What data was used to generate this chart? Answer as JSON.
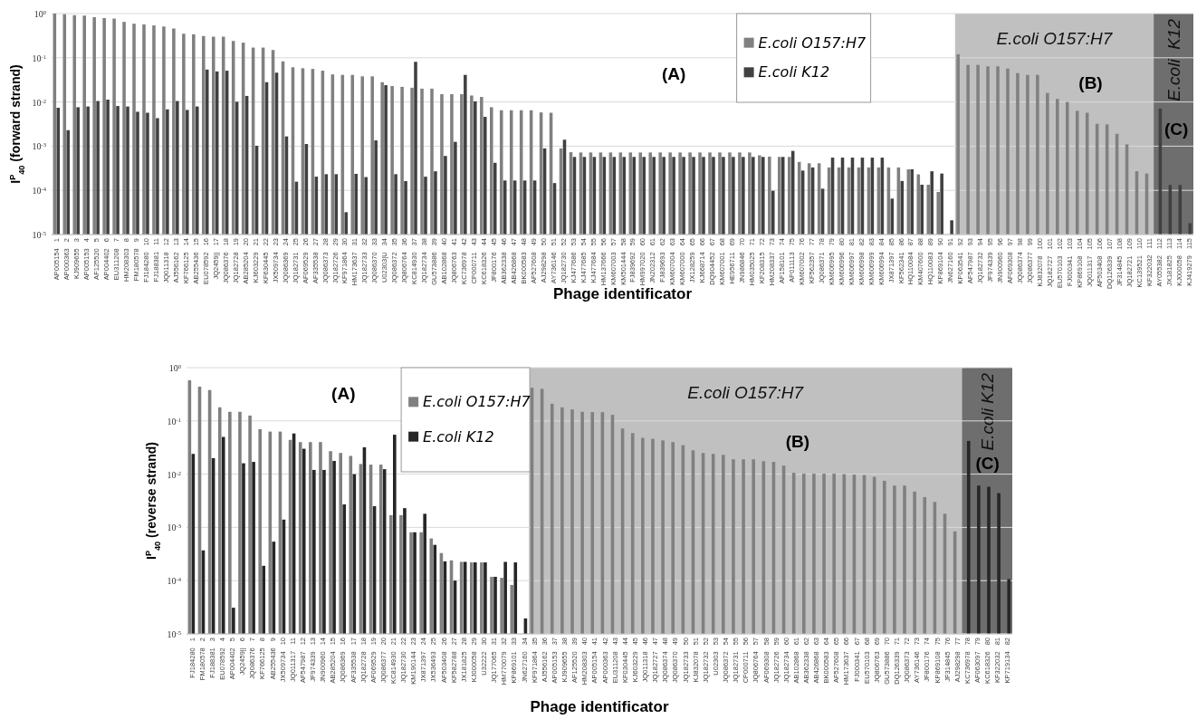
{
  "chart_data": [
    {
      "type": "bar",
      "xlabel": "Phage identificator",
      "ylabel": "I$^{P}$$_{40}$ (forward strand)",
      "log": true,
      "grid": "y",
      "legend": "top",
      "ylim": [
        1e-05,
        1
      ],
      "yticks": [
        {
          "value": 1e-05,
          "label": "10$^{-5}$"
        },
        {
          "value": 0.0001,
          "label": "10$^{-4}$"
        },
        {
          "value": 0.001,
          "label": "10$^{-3}$"
        },
        {
          "value": 0.01,
          "label": "10$^{-2}$"
        },
        {
          "value": 0.1,
          "label": "10$^{-1}$"
        },
        {
          "value": 1,
          "label": "10$^{0}$"
        }
      ],
      "categories": [
        "AP005154 1",
        "AP000363 2",
        "KJ909655 3",
        "AP005153 4",
        "AF125520 5",
        "AP004402 6",
        "EU311208 7",
        "HM208303 8",
        "FM180578 9",
        "FJ184280 10",
        "FJ188381 11",
        "JQ011318 12",
        "AJ556162 13",
        "KF766125 14",
        "AB255436 15",
        "EU078592 16",
        "JQ2459|| 17",
        "JQ086376 18",
        "JQ182728 19",
        "AB285204 20",
        "KJ603229 21",
        "KF630445 22",
        "JX509734 23",
        "JQ086369 24",
        "JQ182731 25",
        "AF069529 26",
        "AF335538 27",
        "JQ086373 28",
        "JQ182726 29",
        "KF971864 30",
        "HM173637 31",
        "JQ182733 32",
        "JQ086370 33",
        "U02303|U 34",
        "JQ086372 35",
        "JQ806764 36",
        "KC814930 37",
        "JQ182734 38",
        "GU573886 39",
        "AB102868 40",
        "JQ806763 41",
        "KC736978 42",
        "CP000711 43",
        "KC618326 44",
        "JF800176 45",
        "AB362338 46",
        "AB426868 47",
        "BK000583 48",
        "AF527608 49",
        "AJ298298 50",
        "AY736146 51",
        "JQ182730 52",
        "KJ477686 53",
        "KJ477685 54",
        "KJ477684 55",
        "HM137666 56",
        "KM607003 57",
        "KM501444 58",
        "FJ839692 59",
        "HM997020 60",
        "JN202312 61",
        "FJ839693 62",
        "KM607004 63",
        "KM607000 64",
        "JX128259 65",
        "KJ668714 66",
        "DQ904452 67",
        "KM607001 68",
        "HE956711 69",
        "JN986846 70",
        "HM035025 71",
        "KF208315 72",
        "HM208337 73",
        "AF158101 74",
        "AP011113 75",
        "KM607002 76",
        "KF562357 77",
        "JQ086371 78",
        "KM606995 79",
        "KM606996 80",
        "KM606997 81",
        "KM606998 82",
        "KM606999 83",
        "KM606994 84",
        "JX871397 85",
        "KF562341 86",
        "HQ110084 87",
        "KM407600 88",
        "HQ110083 89",
        "KP869104 90",
        "JN627160 91",
        "KP063541 92",
        "AF547987 93",
        "JQ182732 94",
        "JF974339 95",
        "JN900960 96",
        "AF069308 97",
        "JQ086374 98",
        "JQ086377 99",
        "KJ832078 100",
        "JQ182727 101",
        "EU570103 102",
        "FJ000341 103",
        "KP869108 104",
        "JQ011317 105",
        "AF503408 106",
        "DQ126339 107",
        "JF314845 108",
        "JQ182721 109",
        "KC139521 110",
        "KF322032 111",
        "AY055382 112",
        "JX181825 113",
        "KJ000058 114",
        "KJ419279 115"
      ],
      "series": [
        {
          "name": "E.coli O157:H7",
          "color": "#808080",
          "values": [
            1,
            0.97,
            0.92,
            0.9,
            0.83,
            0.79,
            0.77,
            0.65,
            0.59,
            0.57,
            0.54,
            0.51,
            0.46,
            0.35,
            0.34,
            0.31,
            0.3,
            0.3,
            0.24,
            0.22,
            0.17,
            0.17,
            0.15,
            0.083,
            0.061,
            0.058,
            0.056,
            0.051,
            0.042,
            0.041,
            0.041,
            0.038,
            0.038,
            0.028,
            0.023,
            0.022,
            0.021,
            0.02,
            0.02,
            0.015,
            0.015,
            0.015,
            0.014,
            0.013,
            0.0076,
            0.0065,
            0.0065,
            0.0065,
            0.0065,
            0.0058,
            0.0057,
            0.00089,
            0.00073,
            0.00072,
            0.00072,
            0.00072,
            0.00072,
            0.00072,
            0.00072,
            0.00072,
            0.00072,
            0.00072,
            0.00072,
            0.00072,
            0.00072,
            0.00072,
            0.00072,
            0.00072,
            0.00072,
            0.00072,
            0.00072,
            0.00062,
            0.00058,
            0.00057,
            0.00057,
            0.00044,
            0.00041,
            0.00041,
            0.00033,
            0.00033,
            0.00033,
            0.00033,
            0.00033,
            0.00033,
            0.00033,
            0.00033,
            0.0003,
            0.00023,
            0.000134,
            9.2e-05,
            null,
            0.12,
            0.069,
            0.069,
            0.064,
            0.064,
            0.057,
            0.045,
            0.041,
            0.041,
            0.016,
            0.0117,
            0.01,
            0.0063,
            0.0057,
            0.0032,
            0.0031,
            0.0019,
            0.0011,
            0.00027,
            0.00024,
            null,
            null,
            null,
            null
          ]
        },
        {
          "name": "E.coli K12",
          "color": "#404040",
          "values": [
            0.0074,
            0.0023,
            0.0076,
            0.0079,
            0.0105,
            0.0113,
            0.0081,
            0.0079,
            0.006,
            0.0057,
            0.0043,
            0.0068,
            0.0105,
            0.0066,
            0.0079,
            0.054,
            0.049,
            0.051,
            0.0101,
            0.0137,
            0.00102,
            0.028,
            0.046,
            0.00166,
            0.000157,
            0.00112,
            0.000204,
            0.000232,
            0.000232,
            3.2e-05,
            0.000236,
            0.0002,
            0.00135,
            0.024,
            0.000232,
            0.000162,
            0.081,
            0.000204,
            0.00027,
            0.0006,
            0.00125,
            0.041,
            0.0103,
            0.0046,
            0.00042,
            0.000167,
            0.000167,
            0.000167,
            0.000167,
            0.00089,
            0.000146,
            0.0014,
            0.00057,
            0.00057,
            0.00057,
            0.00057,
            0.00057,
            0.00057,
            0.00057,
            0.00057,
            0.00057,
            0.00057,
            0.00057,
            0.00057,
            0.00057,
            0.00057,
            0.00057,
            0.00057,
            0.00057,
            0.00057,
            0.00057,
            0.00057,
            9.8e-05,
            0.00057,
            0.00078,
            0.00028,
            0.00033,
            0.000109,
            0.00055,
            0.00055,
            0.00055,
            0.00055,
            0.00055,
            0.00055,
            6.5e-05,
            0.000163,
            0.0003,
            0.000134,
            0.00027,
            0.00024,
            2.1e-05,
            null,
            null,
            null,
            null,
            null,
            null,
            null,
            null,
            null,
            null,
            null,
            null,
            null,
            null,
            null,
            null,
            null,
            null,
            null,
            null,
            0.0071,
            0.000132,
            0.000132,
            1.8e-05
          ]
        }
      ],
      "bands": [
        {
          "axis": "x",
          "from": "KP063541 92",
          "to": "KF322032 111",
          "label": "E.coli O157:H7",
          "color": "#c0c0c0"
        },
        {
          "axis": "x",
          "from": "AY055382 112",
          "to": "KJ419279 115",
          "label": "E.coli  K12",
          "color": "#6e6e6e"
        }
      ],
      "annotations": [
        "(A)",
        "(B)",
        "(C)"
      ]
    },
    {
      "type": "bar",
      "xlabel": "Phage identificator",
      "ylabel": "I$^{P}$$_{40}$ (reverse strand)",
      "log": true,
      "grid": "y",
      "legend": "top",
      "ylim": [
        1e-05,
        1
      ],
      "yticks": [
        {
          "value": 1e-05,
          "label": "10$^{-5}$"
        },
        {
          "value": 0.0001,
          "label": "10$^{-4}$"
        },
        {
          "value": 0.001,
          "label": "10$^{-3}$"
        },
        {
          "value": 0.01,
          "label": "10$^{-2}$"
        },
        {
          "value": 0.1,
          "label": "10$^{-1}$"
        },
        {
          "value": 1,
          "label": "10$^{0}$"
        }
      ],
      "categories": [
        "FJ184280 1",
        "FM180578 2",
        "FJ188381 3",
        "EU078592 4",
        "AP004402 5",
        "JQ2459|| 6",
        "JQ086376 7",
        "KF766125 8",
        "AB255436 9",
        "JX509734 10",
        "JQ011317 11",
        "AF547987 12",
        "JF974339 13",
        "JN900960 14",
        "AB285204 15",
        "JQ086369 16",
        "AF335538 17",
        "JQ182728 18",
        "AF069529 19",
        "JQ086377 20",
        "KC814930 21",
        "JQ182730 22",
        "KM190144 23",
        "JX871397 24",
        "JX536493 25",
        "AF503408 26",
        "KF582788 27",
        "JX181825 28",
        "KJ000058 29",
        "U32222 30",
        "JQ177065 31",
        "HM770079 32",
        "KP869101 33",
        "JN627160 34",
        "KF971864 35",
        "AJ556162 36",
        "AP005153 37",
        "KJ909655 38",
        "AF125520 39",
        "HM208303 40",
        "AP005154 41",
        "AP000363 42",
        "EU311208 43",
        "KF030445 44",
        "KJ603229 45",
        "JQ011318 46",
        "JQ182727 47",
        "JQ086374 48",
        "JQ086370 49",
        "JQ182733 50",
        "KJ832078 51",
        "JQ182732 52",
        "U02303 53",
        "JQ086372 54",
        "JQ182731 55",
        "CP000711 56",
        "JQ806764 57",
        "AF069308 58",
        "JQ182726 59",
        "JQ182734 60",
        "AB102868 61",
        "AB362338 62",
        "AB426868 63",
        "BK000583 64",
        "AF527608 65",
        "HM173637 66",
        "FJ000341 67",
        "EU570103 68",
        "JQ806763 69",
        "GU573886 70",
        "DQ126339 71",
        "JQ086373 72",
        "AY736146 73",
        "JF800176 74",
        "KP869108 75",
        "JF314845 76",
        "AJ298298 77",
        "KC736978 78",
        "AF063097 79",
        "KC618326 80",
        "KF322032 81",
        "KP719134 82"
      ],
      "series": [
        {
          "name": "E.coli O157:H7",
          "color": "#808080",
          "values": [
            0.58,
            0.44,
            0.38,
            0.18,
            0.148,
            0.148,
            0.126,
            0.07,
            0.063,
            0.063,
            0.044,
            0.04,
            0.04,
            0.04,
            0.027,
            0.025,
            0.022,
            0.0155,
            0.0151,
            0.0151,
            0.0017,
            0.0017,
            0.00081,
            0.00081,
            0.00062,
            0.00033,
            0.00024,
            0.000225,
            0.00022,
            0.00022,
            0.000118,
            0.000113,
            8.3e-05,
            null,
            0.42,
            0.4,
            0.21,
            0.18,
            0.164,
            0.148,
            0.146,
            0.146,
            0.13,
            0.072,
            0.059,
            0.048,
            0.046,
            0.043,
            0.04,
            0.035,
            0.028,
            0.025,
            0.024,
            0.023,
            0.019,
            0.019,
            0.019,
            0.0175,
            0.017,
            0.0145,
            0.0106,
            0.0102,
            0.0102,
            0.0102,
            0.0102,
            0.01,
            0.0098,
            0.0096,
            0.0089,
            0.0075,
            0.0061,
            0.0061,
            0.0047,
            0.0037,
            0.003,
            0.0018,
            0.00084,
            null,
            null,
            null,
            null,
            null
          ]
        },
        {
          "name": "E.coli K12",
          "color": "#262626",
          "values": [
            0.024,
            0.00037,
            0.02,
            0.05,
            3.1e-05,
            0.016,
            0.017,
            0.00019,
            0.00054,
            0.0014,
            0.058,
            0.03,
            0.012,
            0.012,
            0.0177,
            0.0027,
            0.01,
            0.032,
            0.0025,
            0.0124,
            0.055,
            0.0023,
            0.00081,
            0.0018,
            0.00047,
            0.00023,
            0.0001,
            0.000225,
            0.00022,
            0.00022,
            0.000118,
            0.000225,
            0.00022,
            1.95e-05,
            null,
            null,
            null,
            null,
            null,
            null,
            null,
            null,
            null,
            null,
            null,
            null,
            null,
            null,
            null,
            null,
            null,
            null,
            null,
            null,
            null,
            null,
            null,
            null,
            null,
            null,
            null,
            null,
            null,
            null,
            null,
            null,
            null,
            null,
            null,
            null,
            null,
            null,
            null,
            null,
            null,
            null,
            null,
            0.042,
            0.0061,
            0.0058,
            0.0044,
            0.000107
          ]
        }
      ],
      "bands": [
        {
          "axis": "x",
          "from": "KF971864 35",
          "to": "AJ298298 77",
          "label": "E.coli O157:H7",
          "color": "#c0c0c0"
        },
        {
          "axis": "x",
          "from": "KC736978 78",
          "to": "KP719134 82",
          "label": "E.coli K12",
          "color": "#6e6e6e"
        }
      ],
      "annotations": [
        "(A)",
        "(B)",
        "(C)"
      ]
    }
  ]
}
